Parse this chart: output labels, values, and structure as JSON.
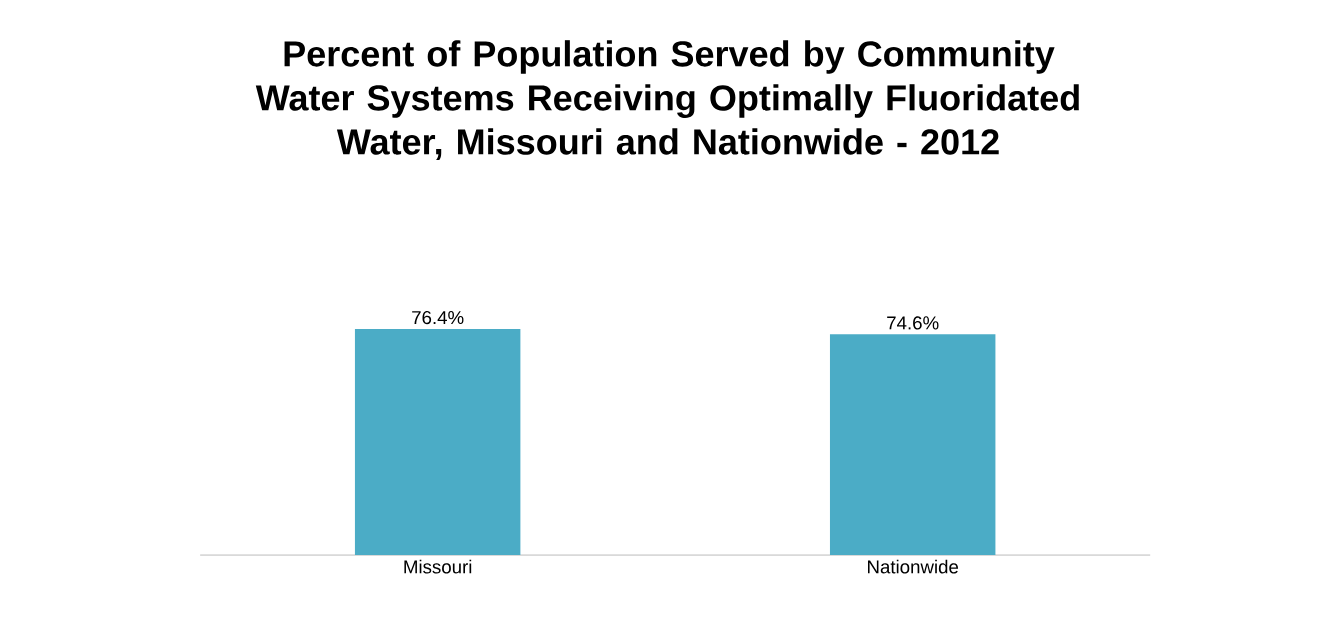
{
  "chart_data": {
    "type": "bar",
    "title": "Percent of Population Served by Community Water Systems Receiving Optimally Fluoridated Water, Missouri and Nationwide - 2012",
    "categories": [
      "Missouri",
      "Nationwide"
    ],
    "values": [
      76.4,
      74.6
    ],
    "value_labels": [
      "76.4%",
      "74.6%"
    ],
    "color": "#4bacc6"
  }
}
